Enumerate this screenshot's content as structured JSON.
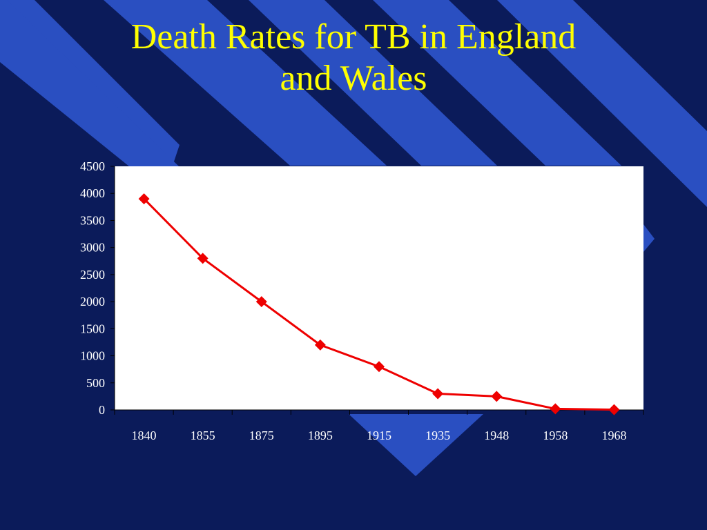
{
  "slide": {
    "title_line1": "Death Rates for TB in England",
    "title_line2": "and Wales"
  },
  "colors": {
    "background": "#0b1b5a",
    "stripe": "#2a4fc1",
    "title": "#ffff00",
    "plot_area": "#ffffff",
    "series": "#ee0000",
    "axis_text": "#ffffff"
  },
  "chart_data": {
    "type": "line",
    "title": "",
    "xlabel": "",
    "ylabel": "",
    "categories": [
      "1840",
      "1855",
      "1875",
      "1895",
      "1915",
      "1935",
      "1948",
      "1958",
      "1968"
    ],
    "series": [
      {
        "values": [
          3900,
          2800,
          2000,
          1200,
          800,
          300,
          250,
          20,
          5
        ],
        "marker": "diamond",
        "color": "#ee0000"
      }
    ],
    "ylim": [
      0,
      4500
    ],
    "yticks": [
      0,
      500,
      1000,
      1500,
      2000,
      2500,
      3000,
      3500,
      4000,
      4500
    ],
    "grid": false,
    "legend": "none"
  }
}
